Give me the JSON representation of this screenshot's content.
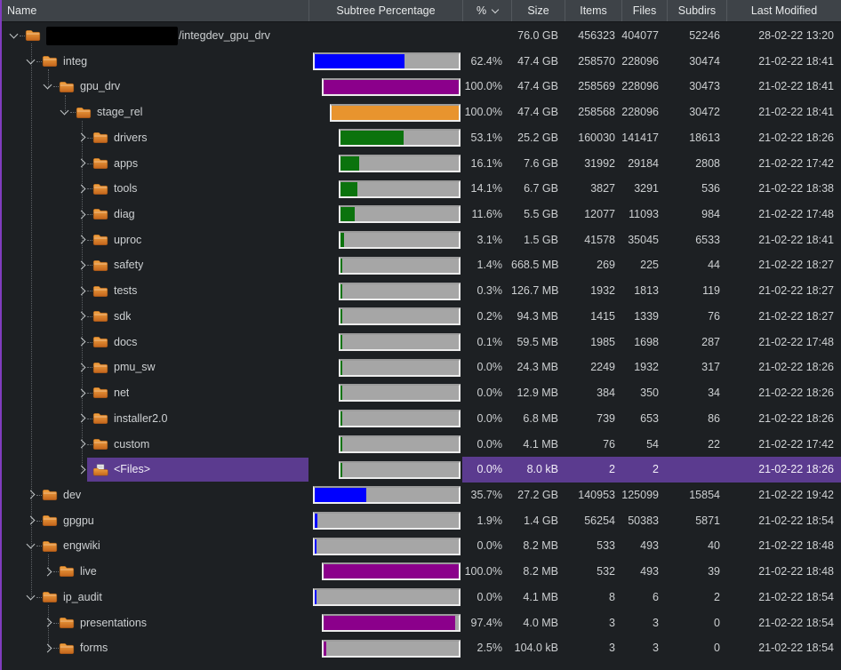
{
  "header": {
    "columns": [
      {
        "id": "name",
        "label": "Name"
      },
      {
        "id": "bar",
        "label": "Subtree Percentage"
      },
      {
        "id": "pct",
        "label": "%",
        "sortable_indicator": true
      },
      {
        "id": "size",
        "label": "Size"
      },
      {
        "id": "items",
        "label": "Items"
      },
      {
        "id": "files",
        "label": "Files"
      },
      {
        "id": "subdirs",
        "label": "Subdirs"
      },
      {
        "id": "mod",
        "label": "Last Modified"
      }
    ],
    "sort": {
      "column": "%",
      "direction": "desc",
      "icon": "chevron-down-icon"
    }
  },
  "colors": {
    "window_edge": "#803cbe",
    "selection": "#5b3b8f",
    "bar_track": "#a6a6a6",
    "bar_frame": "#ececec",
    "bar_fill_by_depth": {
      "1": "#0000ff",
      "2": "#8b008b",
      "3": "#e8942e",
      "4": "#0b730d"
    },
    "folder_icon": "#e58a2a",
    "header_bg": "#3e4348",
    "row_bg": "#1d2023"
  },
  "rows": [
    {
      "label": "/integdev_gpu_drv",
      "redacted_prefix": true,
      "depth": 0,
      "expander": "expanded",
      "icon": "folder",
      "percent_bar": null,
      "percent": "",
      "size": "76.0 GB",
      "items": "456323",
      "files": "404077",
      "subdirs": "52246",
      "modified": "28-02-22 13:20",
      "selected": false
    },
    {
      "label": "integ",
      "depth": 1,
      "expander": "expanded",
      "icon": "folder",
      "percent_bar": 62.4,
      "percent": "62.4%",
      "size": "47.4 GB",
      "items": "258570",
      "files": "228096",
      "subdirs": "30474",
      "modified": "21-02-22 18:41",
      "selected": false
    },
    {
      "label": "gpu_drv",
      "depth": 2,
      "expander": "expanded",
      "icon": "folder",
      "percent_bar": 100.0,
      "percent": "100.0%",
      "size": "47.4 GB",
      "items": "258569",
      "files": "228096",
      "subdirs": "30473",
      "modified": "21-02-22 18:41",
      "selected": false
    },
    {
      "label": "stage_rel",
      "depth": 3,
      "expander": "expanded",
      "icon": "folder",
      "percent_bar": 100.0,
      "percent": "100.0%",
      "size": "47.4 GB",
      "items": "258568",
      "files": "228096",
      "subdirs": "30472",
      "modified": "21-02-22 18:41",
      "selected": false
    },
    {
      "label": "drivers",
      "depth": 4,
      "expander": "collapsed",
      "icon": "folder",
      "percent_bar": 53.1,
      "percent": "53.1%",
      "size": "25.2 GB",
      "items": "160030",
      "files": "141417",
      "subdirs": "18613",
      "modified": "21-02-22 18:26",
      "selected": false
    },
    {
      "label": "apps",
      "depth": 4,
      "expander": "collapsed",
      "icon": "folder",
      "percent_bar": 16.1,
      "percent": "16.1%",
      "size": "7.6 GB",
      "items": "31992",
      "files": "29184",
      "subdirs": "2808",
      "modified": "21-02-22 17:42",
      "selected": false
    },
    {
      "label": "tools",
      "depth": 4,
      "expander": "collapsed",
      "icon": "folder",
      "percent_bar": 14.1,
      "percent": "14.1%",
      "size": "6.7 GB",
      "items": "3827",
      "files": "3291",
      "subdirs": "536",
      "modified": "21-02-22 18:38",
      "selected": false
    },
    {
      "label": "diag",
      "depth": 4,
      "expander": "collapsed",
      "icon": "folder",
      "percent_bar": 11.6,
      "percent": "11.6%",
      "size": "5.5 GB",
      "items": "12077",
      "files": "11093",
      "subdirs": "984",
      "modified": "21-02-22 17:48",
      "selected": false
    },
    {
      "label": "uproc",
      "depth": 4,
      "expander": "collapsed",
      "icon": "folder",
      "percent_bar": 3.1,
      "percent": "3.1%",
      "size": "1.5 GB",
      "items": "41578",
      "files": "35045",
      "subdirs": "6533",
      "modified": "21-02-22 18:41",
      "selected": false
    },
    {
      "label": "safety",
      "depth": 4,
      "expander": "collapsed",
      "icon": "folder",
      "percent_bar": 1.4,
      "percent": "1.4%",
      "size": "668.5 MB",
      "items": "269",
      "files": "225",
      "subdirs": "44",
      "modified": "21-02-22 18:27",
      "selected": false
    },
    {
      "label": "tests",
      "depth": 4,
      "expander": "collapsed",
      "icon": "folder",
      "percent_bar": 0.3,
      "percent": "0.3%",
      "size": "126.7 MB",
      "items": "1932",
      "files": "1813",
      "subdirs": "119",
      "modified": "21-02-22 18:27",
      "selected": false
    },
    {
      "label": "sdk",
      "depth": 4,
      "expander": "collapsed",
      "icon": "folder",
      "percent_bar": 0.2,
      "percent": "0.2%",
      "size": "94.3 MB",
      "items": "1415",
      "files": "1339",
      "subdirs": "76",
      "modified": "21-02-22 18:27",
      "selected": false
    },
    {
      "label": "docs",
      "depth": 4,
      "expander": "collapsed",
      "icon": "folder",
      "percent_bar": 0.1,
      "percent": "0.1%",
      "size": "59.5 MB",
      "items": "1985",
      "files": "1698",
      "subdirs": "287",
      "modified": "21-02-22 17:48",
      "selected": false
    },
    {
      "label": "pmu_sw",
      "depth": 4,
      "expander": "collapsed",
      "icon": "folder",
      "percent_bar": 0.0,
      "percent": "0.0%",
      "size": "24.3 MB",
      "items": "2249",
      "files": "1932",
      "subdirs": "317",
      "modified": "21-02-22 18:26",
      "selected": false
    },
    {
      "label": "net",
      "depth": 4,
      "expander": "collapsed",
      "icon": "folder",
      "percent_bar": 0.0,
      "percent": "0.0%",
      "size": "12.9 MB",
      "items": "384",
      "files": "350",
      "subdirs": "34",
      "modified": "21-02-22 18:26",
      "selected": false
    },
    {
      "label": "installer2.0",
      "depth": 4,
      "expander": "collapsed",
      "icon": "folder",
      "percent_bar": 0.0,
      "percent": "0.0%",
      "size": "6.8 MB",
      "items": "739",
      "files": "653",
      "subdirs": "86",
      "modified": "21-02-22 18:26",
      "selected": false
    },
    {
      "label": "custom",
      "depth": 4,
      "expander": "collapsed",
      "icon": "folder",
      "percent_bar": 0.0,
      "percent": "0.0%",
      "size": "4.1 MB",
      "items": "76",
      "files": "54",
      "subdirs": "22",
      "modified": "21-02-22 17:42",
      "selected": false
    },
    {
      "label": "<Files>",
      "depth": 4,
      "expander": "collapsed",
      "icon": "files",
      "percent_bar": 0.0,
      "percent": "0.0%",
      "size": "8.0 kB",
      "items": "2",
      "files": "2",
      "subdirs": "",
      "modified": "21-02-22 18:26",
      "selected": true
    },
    {
      "label": "dev",
      "depth": 1,
      "expander": "collapsed",
      "icon": "folder",
      "percent_bar": 35.7,
      "percent": "35.7%",
      "size": "27.2 GB",
      "items": "140953",
      "files": "125099",
      "subdirs": "15854",
      "modified": "21-02-22 19:42",
      "selected": false
    },
    {
      "label": "gpgpu",
      "depth": 1,
      "expander": "collapsed",
      "icon": "folder",
      "percent_bar": 1.9,
      "percent": "1.9%",
      "size": "1.4 GB",
      "items": "56254",
      "files": "50383",
      "subdirs": "5871",
      "modified": "21-02-22 18:54",
      "selected": false
    },
    {
      "label": "engwiki",
      "depth": 1,
      "expander": "expanded",
      "icon": "folder",
      "percent_bar": 0.0,
      "percent": "0.0%",
      "size": "8.2 MB",
      "items": "533",
      "files": "493",
      "subdirs": "40",
      "modified": "21-02-22 18:48",
      "selected": false
    },
    {
      "label": "live",
      "depth": 2,
      "expander": "collapsed",
      "icon": "folder",
      "percent_bar": 100.0,
      "percent": "100.0%",
      "size": "8.2 MB",
      "items": "532",
      "files": "493",
      "subdirs": "39",
      "modified": "21-02-22 18:48",
      "selected": false
    },
    {
      "label": "ip_audit",
      "depth": 1,
      "expander": "expanded",
      "icon": "folder",
      "percent_bar": 0.0,
      "percent": "0.0%",
      "size": "4.1 MB",
      "items": "8",
      "files": "6",
      "subdirs": "2",
      "modified": "21-02-22 18:54",
      "selected": false
    },
    {
      "label": "presentations",
      "depth": 2,
      "expander": "collapsed",
      "icon": "folder",
      "percent_bar": 97.4,
      "percent": "97.4%",
      "size": "4.0 MB",
      "items": "3",
      "files": "3",
      "subdirs": "0",
      "modified": "21-02-22 18:54",
      "selected": false
    },
    {
      "label": "forms",
      "depth": 2,
      "expander": "collapsed",
      "icon": "folder",
      "percent_bar": 2.5,
      "percent": "2.5%",
      "size": "104.0 kB",
      "items": "3",
      "files": "3",
      "subdirs": "0",
      "modified": "21-02-22 18:54",
      "selected": false
    }
  ]
}
